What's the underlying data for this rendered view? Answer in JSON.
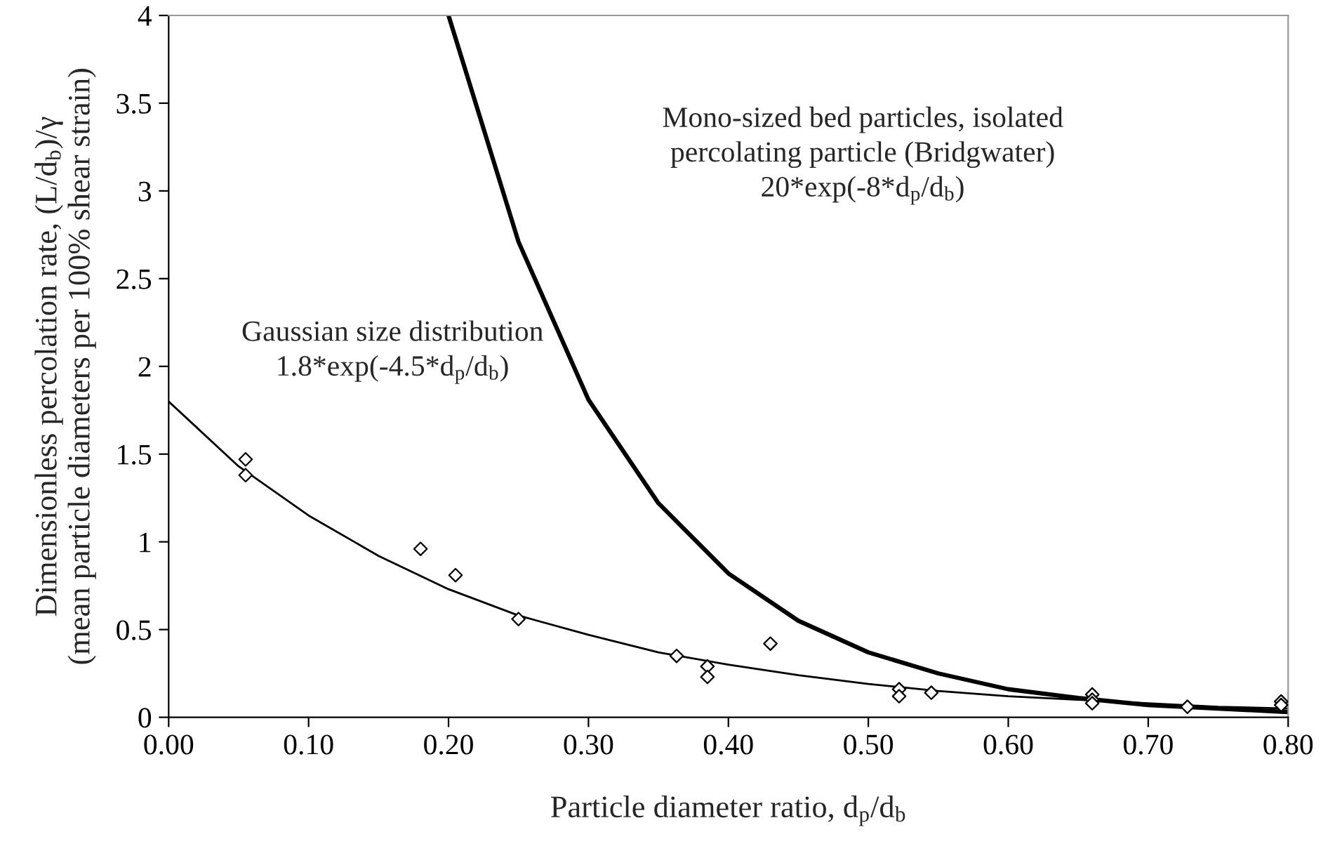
{
  "chart_data": {
    "type": "scatter",
    "xlabel": "Particle diameter ratio, d$_{p}$/d$_{b}$",
    "ylabel": "Dimensionless percolation rate, (L/d$_{b}$)/γ\n(mean particle diameters per 100% shear strain)",
    "series": [
      {
        "color": "#000000",
        "marker": "diamond",
        "x": [
          0.055,
          0.055,
          0.18,
          0.205,
          0.25,
          0.363,
          0.385,
          0.385,
          0.43,
          0.522,
          0.522,
          0.545,
          0.66,
          0.66,
          0.66,
          0.728,
          0.795,
          0.795
        ],
        "values": [
          1.47,
          1.38,
          0.96,
          0.81,
          0.56,
          0.35,
          0.29,
          0.23,
          0.42,
          0.16,
          0.12,
          0.14,
          0.13,
          0.1,
          0.08,
          0.06,
          0.09,
          0.07
        ]
      },
      {
        "type": "line",
        "color": "#000000",
        "line_style": "solid",
        "x": [
          0,
          0.05,
          0.1,
          0.15,
          0.2,
          0.25,
          0.3,
          0.35,
          0.4,
          0.45,
          0.5,
          0.55,
          0.6,
          0.65,
          0.7,
          0.75,
          0.8
        ],
        "values": [
          1.8,
          1.43,
          1.15,
          0.92,
          0.73,
          0.58,
          0.47,
          0.37,
          0.3,
          0.24,
          0.19,
          0.15,
          0.12,
          0.1,
          0.08,
          0.06,
          0.05
        ]
      },
      {
        "type": "line",
        "color": "#000000",
        "line_style": "solid",
        "x": [
          0.2,
          0.25,
          0.3,
          0.35,
          0.4,
          0.45,
          0.5,
          0.55,
          0.6,
          0.65,
          0.7,
          0.75,
          0.8
        ],
        "values": [
          4.0,
          2.71,
          1.81,
          1.22,
          0.82,
          0.55,
          0.37,
          0.25,
          0.16,
          0.11,
          0.07,
          0.05,
          0.03
        ]
      }
    ],
    "annotations": [
      "Mono-sized bed particles, isolated\npercolating particle (Bridgwater)\n20*exp(-8*d$_{p}$/d$_{b}$)",
      "Gaussian size distribution\n1.8*exp(-4.5*d$_{p}$/d$_{b}$)"
    ],
    "xlim": [
      0,
      0.8
    ],
    "ylim": [
      0,
      4
    ],
    "xticks": [
      {
        "value": 0,
        "label": "0.00"
      },
      {
        "value": 0.1,
        "label": "0.10"
      },
      {
        "value": 0.2,
        "label": "0.20"
      },
      {
        "value": 0.3,
        "label": "0.30"
      },
      {
        "value": 0.4,
        "label": "0.40"
      },
      {
        "value": 0.5,
        "label": "0.50"
      },
      {
        "value": 0.6,
        "label": "0.60"
      },
      {
        "value": 0.7,
        "label": "0.70"
      },
      {
        "value": 0.8,
        "label": "0.80"
      }
    ],
    "yticks": [
      0,
      0.5,
      1,
      1.5,
      2,
      2.5,
      3,
      3.5,
      4
    ],
    "grid": false,
    "legend": false
  }
}
